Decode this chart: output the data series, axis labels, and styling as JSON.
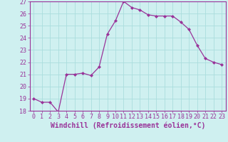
{
  "x": [
    0,
    1,
    2,
    3,
    4,
    5,
    6,
    7,
    8,
    9,
    10,
    11,
    12,
    13,
    14,
    15,
    16,
    17,
    18,
    19,
    20,
    21,
    22,
    23
  ],
  "y": [
    19.0,
    18.7,
    18.7,
    17.9,
    21.0,
    21.0,
    21.1,
    20.9,
    21.6,
    24.3,
    25.4,
    27.0,
    26.5,
    26.3,
    25.9,
    25.8,
    25.8,
    25.8,
    25.3,
    24.7,
    23.4,
    22.3,
    22.0,
    21.8
  ],
  "line_color": "#993399",
  "marker": "D",
  "marker_size": 2.0,
  "bg_color": "#cff0f0",
  "grid_color": "#aadddd",
  "xlabel": "Windchill (Refroidissement éolien,°C)",
  "xlabel_color": "#993399",
  "tick_color": "#993399",
  "ylim": [
    18,
    27
  ],
  "xlim": [
    -0.5,
    23.5
  ],
  "yticks": [
    18,
    19,
    20,
    21,
    22,
    23,
    24,
    25,
    26,
    27
  ],
  "xticks": [
    0,
    1,
    2,
    3,
    4,
    5,
    6,
    7,
    8,
    9,
    10,
    11,
    12,
    13,
    14,
    15,
    16,
    17,
    18,
    19,
    20,
    21,
    22,
    23
  ],
  "axis_fontsize": 6.5,
  "tick_fontsize": 6.0,
  "xlabel_fontsize": 7.0
}
